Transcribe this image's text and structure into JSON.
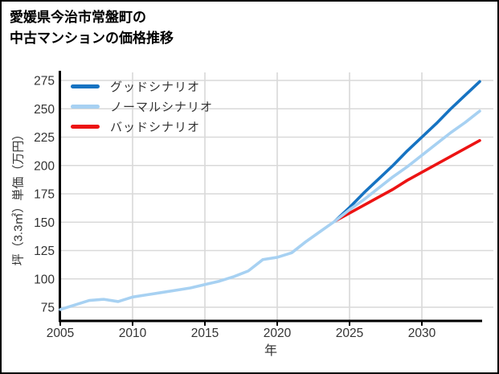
{
  "title": {
    "line1": "愛媛県今治市常盤町の",
    "line2": "中古マンションの価格推移"
  },
  "legend": {
    "items": [
      {
        "label": "グッドシナリオ",
        "color": "#1673c2"
      },
      {
        "label": "ノーマルシナリオ",
        "color": "#a7d1f2"
      },
      {
        "label": "バッドシナリオ",
        "color": "#ec1313"
      }
    ]
  },
  "chart_data": {
    "type": "line",
    "title": "愛媛県今治市常盤町の中古マンションの価格推移",
    "xlabel": "年",
    "ylabel": "坪（3.3㎡）単価（万円）",
    "xlim": [
      2005,
      2035
    ],
    "ylim": [
      62,
      282
    ],
    "x_ticks": [
      2005,
      2010,
      2015,
      2020,
      2025,
      2030
    ],
    "y_ticks": [
      75,
      100,
      125,
      150,
      175,
      200,
      225,
      250,
      275
    ],
    "grid": true,
    "grid_color": "#d9d9d9",
    "axis_color": "#000000",
    "tick_label_color": "#333333",
    "legend_position": "upper-left-inside",
    "series": [
      {
        "name": "グッドシナリオ",
        "color": "#1673c2",
        "x": [
          2024,
          2025,
          2026,
          2027,
          2028,
          2029,
          2030,
          2031,
          2032,
          2033,
          2034
        ],
        "values": [
          151,
          163,
          176,
          188,
          200,
          213,
          225,
          237,
          250,
          262,
          274
        ]
      },
      {
        "name": "バッドシナリオ",
        "color": "#ec1313",
        "x": [
          2024,
          2025,
          2026,
          2027,
          2028,
          2029,
          2030,
          2031,
          2032,
          2033,
          2034
        ],
        "values": [
          151,
          158,
          165,
          172,
          179,
          187,
          194,
          201,
          208,
          215,
          222
        ]
      },
      {
        "name": "ノーマルシナリオ",
        "color": "#a7d1f2",
        "x": [
          2005,
          2006,
          2007,
          2008,
          2009,
          2010,
          2011,
          2012,
          2013,
          2014,
          2015,
          2016,
          2017,
          2018,
          2019,
          2020,
          2021,
          2022,
          2023,
          2024,
          2025,
          2026,
          2027,
          2028,
          2029,
          2030,
          2031,
          2032,
          2033,
          2034
        ],
        "values": [
          73,
          77,
          81,
          82,
          80,
          84,
          86,
          88,
          90,
          92,
          95,
          98,
          102,
          107,
          117,
          119,
          123,
          133,
          142,
          151,
          161,
          170,
          180,
          190,
          199,
          209,
          219,
          229,
          238,
          248
        ]
      }
    ]
  }
}
